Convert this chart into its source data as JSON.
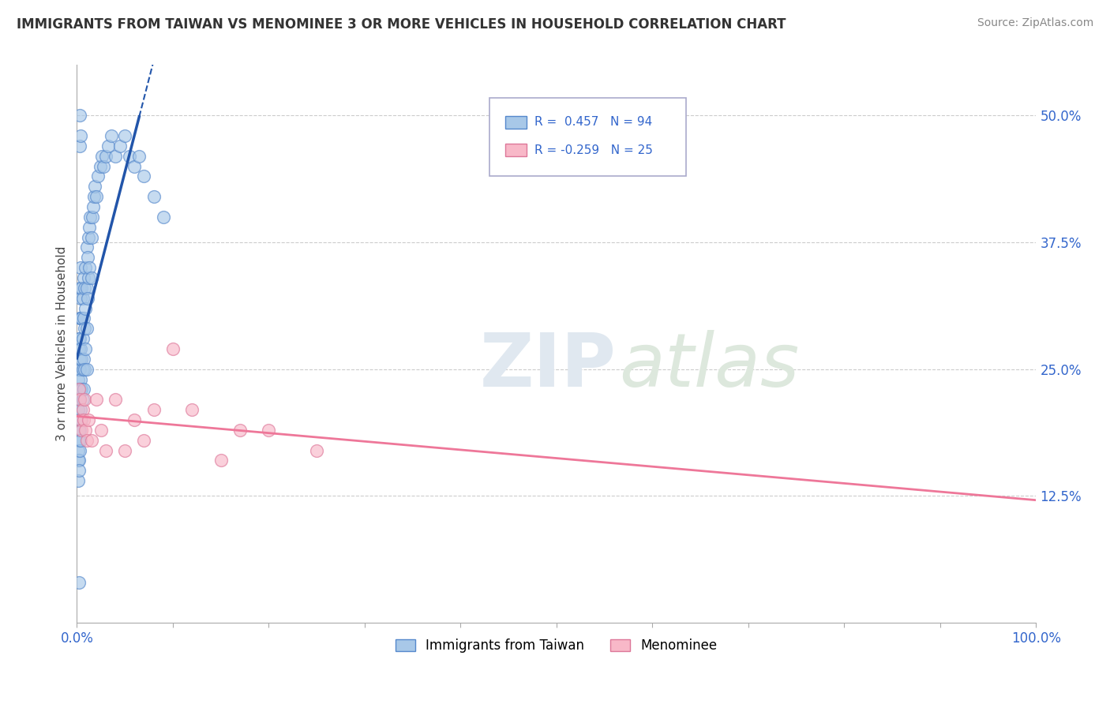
{
  "title": "IMMIGRANTS FROM TAIWAN VS MENOMINEE 3 OR MORE VEHICLES IN HOUSEHOLD CORRELATION CHART",
  "source": "Source: ZipAtlas.com",
  "ylabel": "3 or more Vehicles in Household",
  "ytick_labels": [
    "12.5%",
    "25.0%",
    "37.5%",
    "50.0%"
  ],
  "ytick_values": [
    0.125,
    0.25,
    0.375,
    0.5
  ],
  "xlim": [
    0.0,
    1.0
  ],
  "ylim": [
    0.0,
    0.55
  ],
  "legend_taiwan": {
    "R": 0.457,
    "N": 94,
    "label": "Immigrants from Taiwan"
  },
  "legend_menominee": {
    "R": -0.259,
    "N": 25,
    "label": "Menominee"
  },
  "color_taiwan_fill": "#a8c8e8",
  "color_taiwan_edge": "#5588cc",
  "color_taiwan_line": "#2255aa",
  "color_menominee_fill": "#f8b8c8",
  "color_menominee_edge": "#dd7799",
  "color_menominee_line": "#ee7799",
  "taiwan_x": [
    0.001,
    0.001,
    0.001,
    0.001,
    0.001,
    0.001,
    0.001,
    0.001,
    0.001,
    0.001,
    0.002,
    0.002,
    0.002,
    0.002,
    0.002,
    0.002,
    0.002,
    0.002,
    0.002,
    0.002,
    0.003,
    0.003,
    0.003,
    0.003,
    0.003,
    0.003,
    0.003,
    0.003,
    0.003,
    0.003,
    0.004,
    0.004,
    0.004,
    0.004,
    0.004,
    0.004,
    0.004,
    0.005,
    0.005,
    0.005,
    0.005,
    0.005,
    0.006,
    0.006,
    0.006,
    0.006,
    0.007,
    0.007,
    0.007,
    0.007,
    0.008,
    0.008,
    0.008,
    0.009,
    0.009,
    0.009,
    0.01,
    0.01,
    0.01,
    0.01,
    0.011,
    0.011,
    0.012,
    0.012,
    0.013,
    0.013,
    0.014,
    0.015,
    0.015,
    0.016,
    0.017,
    0.018,
    0.019,
    0.02,
    0.022,
    0.024,
    0.026,
    0.028,
    0.03,
    0.033,
    0.036,
    0.04,
    0.045,
    0.05,
    0.055,
    0.06,
    0.065,
    0.07,
    0.08,
    0.09,
    0.003,
    0.003,
    0.004,
    0.002
  ],
  "taiwan_y": [
    0.2,
    0.18,
    0.22,
    0.16,
    0.24,
    0.14,
    0.19,
    0.21,
    0.17,
    0.23,
    0.25,
    0.22,
    0.19,
    0.27,
    0.16,
    0.23,
    0.2,
    0.18,
    0.28,
    0.15,
    0.28,
    0.25,
    0.22,
    0.3,
    0.19,
    0.26,
    0.23,
    0.33,
    0.2,
    0.17,
    0.3,
    0.27,
    0.24,
    0.32,
    0.21,
    0.18,
    0.35,
    0.3,
    0.26,
    0.23,
    0.33,
    0.2,
    0.32,
    0.28,
    0.25,
    0.22,
    0.34,
    0.3,
    0.26,
    0.23,
    0.33,
    0.29,
    0.25,
    0.35,
    0.31,
    0.27,
    0.37,
    0.33,
    0.29,
    0.25,
    0.36,
    0.32,
    0.38,
    0.34,
    0.39,
    0.35,
    0.4,
    0.38,
    0.34,
    0.4,
    0.41,
    0.42,
    0.43,
    0.42,
    0.44,
    0.45,
    0.46,
    0.45,
    0.46,
    0.47,
    0.48,
    0.46,
    0.47,
    0.48,
    0.46,
    0.45,
    0.46,
    0.44,
    0.42,
    0.4,
    0.47,
    0.5,
    0.48,
    0.04
  ],
  "menominee_x": [
    0.002,
    0.003,
    0.004,
    0.005,
    0.006,
    0.007,
    0.008,
    0.009,
    0.01,
    0.012,
    0.015,
    0.02,
    0.025,
    0.03,
    0.04,
    0.05,
    0.06,
    0.07,
    0.08,
    0.1,
    0.12,
    0.15,
    0.17,
    0.2,
    0.25
  ],
  "menominee_y": [
    0.23,
    0.22,
    0.2,
    0.19,
    0.21,
    0.2,
    0.22,
    0.19,
    0.18,
    0.2,
    0.18,
    0.22,
    0.19,
    0.17,
    0.22,
    0.17,
    0.2,
    0.18,
    0.21,
    0.27,
    0.21,
    0.16,
    0.19,
    0.19,
    0.17
  ]
}
